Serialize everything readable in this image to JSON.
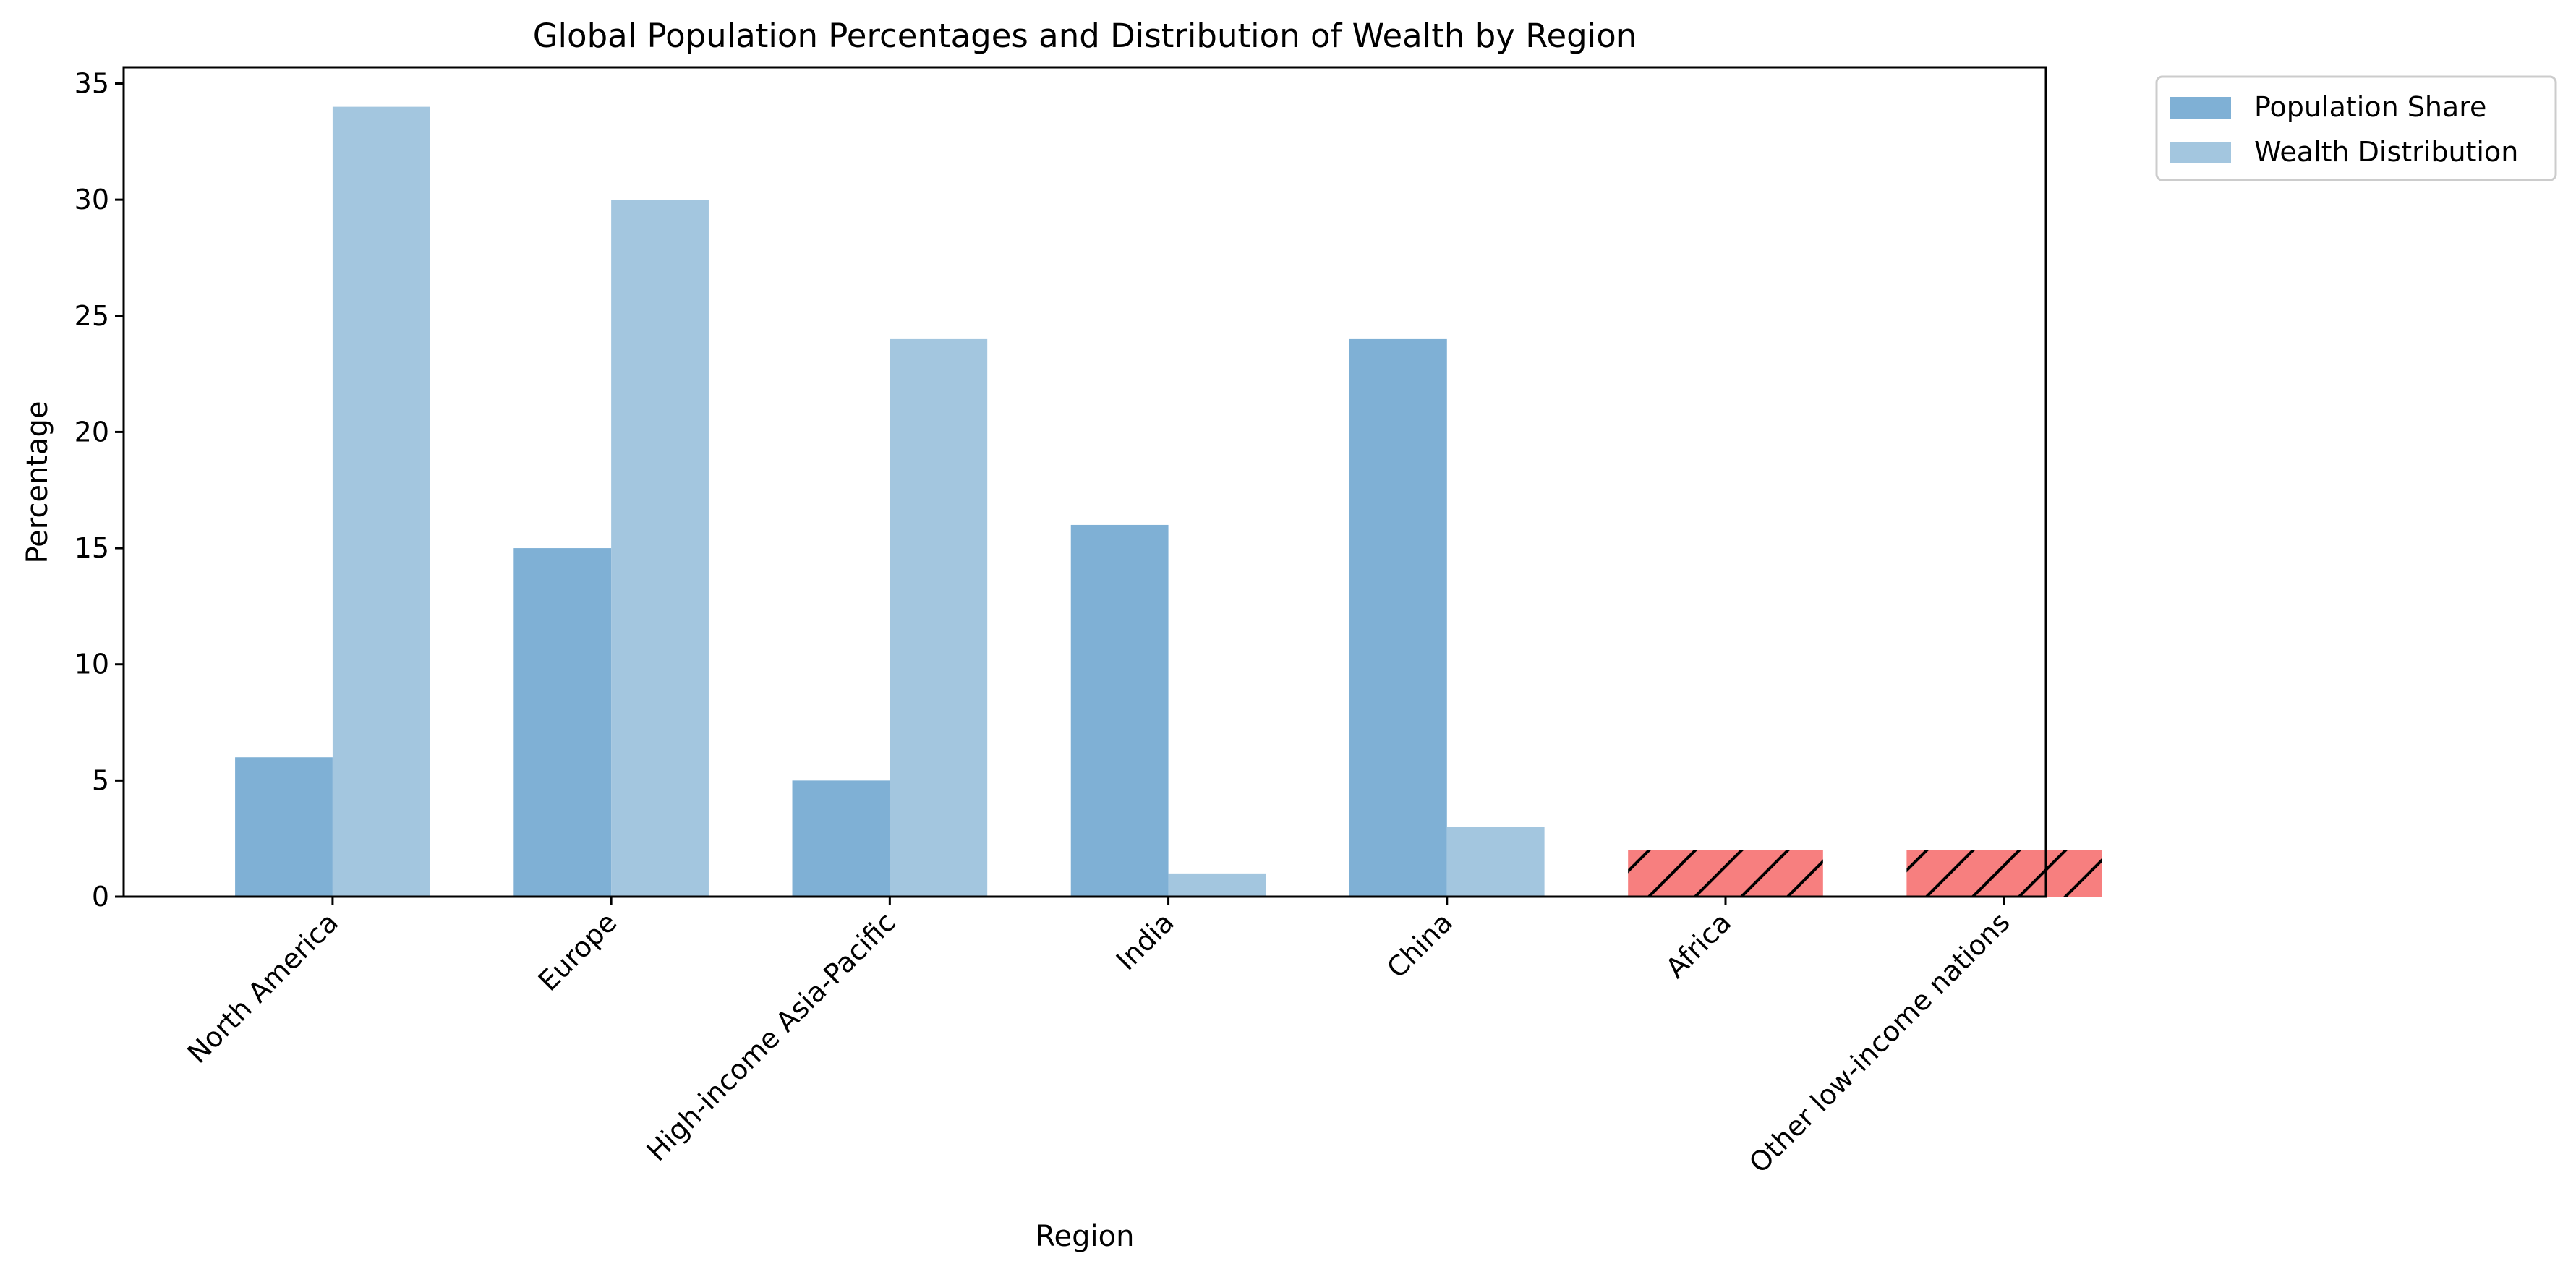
{
  "chart_data": {
    "type": "bar",
    "title": "Global Population Percentages and Distribution of Wealth by Region",
    "xlabel": "Region",
    "ylabel": "Percentage",
    "ylim": [
      0,
      35.7
    ],
    "yticks": [
      0,
      5,
      10,
      15,
      20,
      25,
      30,
      35
    ],
    "grid": false,
    "legend_position": "outside-top-right",
    "categories": [
      "North America",
      "Europe",
      "High-income Asia-Pacific",
      "India",
      "China",
      "Africa",
      "Other low-income nations"
    ],
    "series": [
      {
        "name": "Population Share",
        "color": "#7fb0d5",
        "values": [
          6,
          15,
          5,
          16,
          24,
          null,
          null
        ]
      },
      {
        "name": "Wealth Distribution",
        "color": "#a3c6df",
        "values": [
          34,
          30,
          24,
          1,
          3,
          null,
          null
        ]
      }
    ],
    "combined_bars": {
      "color": "#f77f7f",
      "hatch": "diagonal",
      "values": [
        null,
        null,
        null,
        null,
        null,
        2,
        2
      ]
    }
  }
}
